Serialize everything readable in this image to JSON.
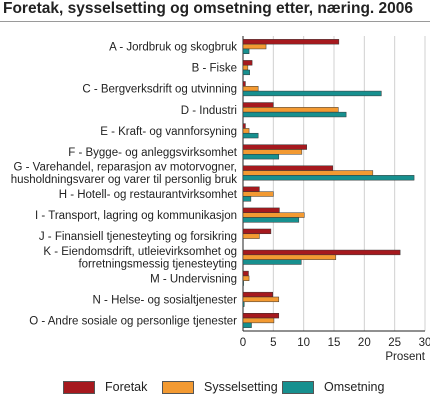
{
  "chart_data": {
    "type": "bar",
    "orientation": "horizontal",
    "title": "Foretak, sysselsetting og omsetning etter, næring. 2006",
    "xlabel": "Prosent",
    "xlim": [
      0,
      30
    ],
    "xticks": [
      "0",
      "5",
      "10",
      "15",
      "20",
      "25",
      "30"
    ],
    "grid": true,
    "legend_position": "bottom",
    "categories": [
      "A - Jordbruk og skogbruk",
      "B - Fiske",
      "C - Bergverksdrift og utvinning",
      "D - Industri",
      "E - Kraft- og vannforsyning",
      "F - Bygge- og anleggsvirksomhet",
      "G - Varehandel, reparasjon av motorvogner, husholdningsvarer og varer til personlig bruk",
      "H - Hotell- og restaurantvirksomhet",
      "I - Transport, lagring og kommunikasjon",
      "J - Finansiell tjenesteyting og forsikring",
      "K - Eiendomsdrift, utleievirksomhet og forretningsmessig tjenesteyting",
      "M - Undervisning",
      "N - Helse- og sosialtjenester",
      "O - Andre sosiale og personlige tjenester"
    ],
    "category_lines": [
      [
        "A - Jordbruk og skogbruk"
      ],
      [
        "B - Fiske"
      ],
      [
        "C - Bergverksdrift og utvinning"
      ],
      [
        "D - Industri"
      ],
      [
        "E - Kraft- og vannforsyning"
      ],
      [
        "F - Bygge- og anleggsvirksomhet"
      ],
      [
        "G - Varehandel, reparasjon av motorvogner,",
        "husholdningsvarer og varer til personlig bruk"
      ],
      [
        "H - Hotell- og restaurantvirksomhet"
      ],
      [
        "I - Transport, lagring og kommunikasjon"
      ],
      [
        "J - Finansiell tjenesteyting og forsikring"
      ],
      [
        "K - Eiendomsdrift, utleievirksomhet og",
        "forretningsmessig tjenesteyting"
      ],
      [
        "M - Undervisning"
      ],
      [
        "N - Helse- og sosialtjenester"
      ],
      [
        "O - Andre sosiale og personlige tjenester"
      ]
    ],
    "series": [
      {
        "name": "Foretak",
        "color": "#a6191e",
        "values": [
          15.8,
          1.5,
          0.4,
          5.0,
          0.4,
          10.5,
          14.8,
          2.7,
          6.0,
          4.6,
          25.9,
          0.9,
          4.9,
          5.9
        ]
      },
      {
        "name": "Sysselsetting",
        "color": "#f39a32",
        "values": [
          3.8,
          0.8,
          2.5,
          15.7,
          1.0,
          9.7,
          21.4,
          5.0,
          10.1,
          2.7,
          15.3,
          1.0,
          5.9,
          5.1
        ]
      },
      {
        "name": "Omsetning",
        "color": "#17908f",
        "values": [
          1.0,
          1.1,
          22.8,
          17.0,
          2.5,
          5.9,
          28.2,
          1.3,
          9.2,
          0.0,
          9.6,
          0.1,
          0.2,
          1.4
        ]
      }
    ]
  }
}
